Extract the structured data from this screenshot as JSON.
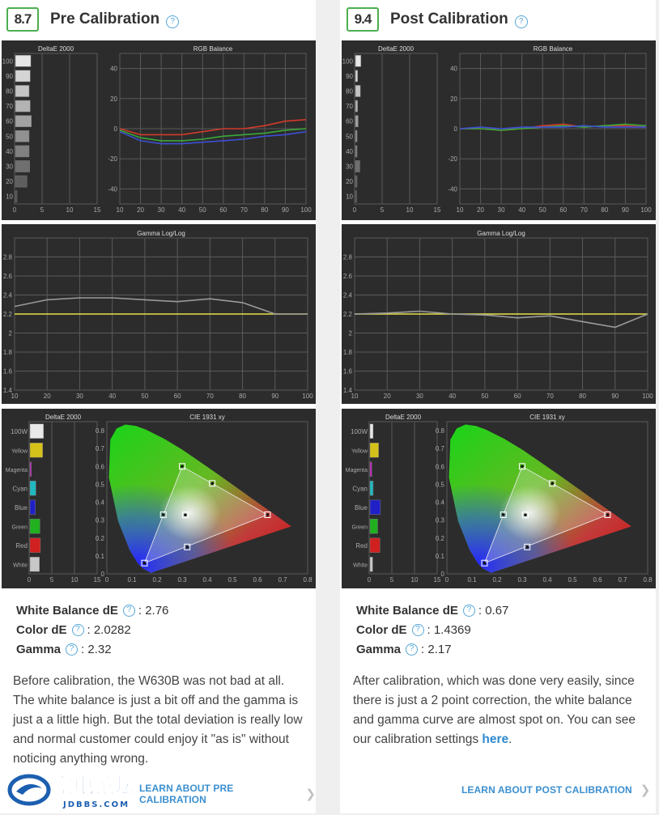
{
  "panels": {
    "pre": {
      "score": "8.7",
      "title": "Pre Calibration",
      "stats": [
        {
          "label": "White Balance dE",
          "value": ": 2.76"
        },
        {
          "label": "Color dE",
          "value": ": 2.0282"
        },
        {
          "label": "Gamma",
          "value": ": 2.32"
        }
      ],
      "description": "Before calibration, the W630B was not bad at all. The white balance is just a bit off and the gamma is just a a little high. But the total deviation is really low and normal customer could enjoy it \"as is\" without noticing anything wrong.",
      "learn_more": "LEARN ABOUT PRE CALIBRATION"
    },
    "post": {
      "score": "9.4",
      "title": "Post Calibration",
      "stats": [
        {
          "label": "White Balance dE",
          "value": ": 0.67"
        },
        {
          "label": "Color dE",
          "value": ": 1.4369"
        },
        {
          "label": "Gamma",
          "value": ": 2.17"
        }
      ],
      "description": "After calibration, which was done very easily, since there is just a 2 point correction, the white balance and gamma curve are almost spot on. You can see our calibration settings ",
      "description_link": "here",
      "description_end": ".",
      "learn_more": "LEARN ABOUT POST CALIBRATION"
    }
  },
  "watermark": {
    "text": "家电论坛",
    "subtext": "JDBBS.COM"
  },
  "chart_data": [
    {
      "panel": "pre",
      "type": "bar",
      "title": "DeltaE 2000",
      "categories": [
        "10",
        "20",
        "30",
        "40",
        "50",
        "60",
        "70",
        "80",
        "90",
        "100"
      ],
      "values": [
        0.3,
        2.1,
        2.6,
        2.5,
        2.5,
        2.9,
        2.7,
        2.5,
        2.7,
        2.8
      ],
      "xticks": [
        "0",
        "5",
        "10",
        "15"
      ],
      "xlim": [
        0,
        15
      ],
      "orientation": "horizontal"
    },
    {
      "panel": "pre",
      "type": "line",
      "title": "RGB Balance",
      "x": [
        10,
        20,
        30,
        40,
        50,
        60,
        70,
        80,
        90,
        100
      ],
      "xticks": [
        "10",
        "20",
        "30",
        "40",
        "50",
        "60",
        "70",
        "80",
        "90",
        "100"
      ],
      "yticks": [
        "40",
        "20",
        "0",
        "-20",
        "-40"
      ],
      "ylim": [
        -50,
        50
      ],
      "series": [
        {
          "color": "#d23a2a",
          "values": [
            0,
            -4,
            -4,
            -4,
            -2,
            0,
            0,
            2,
            5,
            6
          ]
        },
        {
          "color": "#3aa83a",
          "values": [
            -1,
            -6,
            -8,
            -8,
            -7,
            -5,
            -4,
            -3,
            -1,
            0
          ]
        },
        {
          "color": "#3d4fd6",
          "values": [
            -2,
            -8,
            -10,
            -10,
            -9,
            -8,
            -7,
            -5,
            -4,
            -2
          ]
        }
      ]
    },
    {
      "panel": "pre",
      "type": "line",
      "title": "Gamma Log/Log",
      "x": [
        10,
        20,
        30,
        40,
        50,
        60,
        70,
        80,
        90,
        100
      ],
      "xticks": [
        "10",
        "20",
        "30",
        "40",
        "50",
        "60",
        "70",
        "80",
        "90",
        "100"
      ],
      "yticks": [
        "2.8",
        "2.6",
        "2.4",
        "2.2",
        "2",
        "1.8",
        "1.6",
        "1.4"
      ],
      "ylim": [
        1.4,
        3.0
      ],
      "target": 2.2,
      "series": [
        {
          "color": "#9a9a9a",
          "values": [
            2.28,
            2.35,
            2.37,
            2.37,
            2.35,
            2.33,
            2.36,
            2.32,
            2.2,
            2.2
          ]
        }
      ]
    },
    {
      "panel": "pre",
      "type": "bar",
      "title": "DeltaE 2000",
      "categories": [
        "100W",
        "Yellow",
        "Magenta",
        "Cyan",
        "Blue",
        "Green",
        "Red",
        "White"
      ],
      "values": [
        3.0,
        2.8,
        0.3,
        1.3,
        1.2,
        2.2,
        2.3,
        2.1
      ],
      "colors": [
        "#e8e8e8",
        "#d4c21a",
        "#c020c0",
        "#20b8c0",
        "#2020c8",
        "#20b020",
        "#d02020",
        "#c8c8c8"
      ],
      "xticks": [
        "0",
        "5",
        "10",
        "15"
      ],
      "xlim": [
        0,
        15
      ],
      "orientation": "horizontal"
    },
    {
      "panel": "pre",
      "type": "scatter",
      "title": "CIE 1931 xy",
      "xticks": [
        "0",
        "0.1",
        "0.2",
        "0.3",
        "0.4",
        "0.5",
        "0.6",
        "0.7",
        "0.8"
      ],
      "yticks": [
        "0.8",
        "0.7",
        "0.6",
        "0.5",
        "0.4",
        "0.3",
        "0.2",
        "0.1",
        "0"
      ],
      "xlim": [
        0,
        0.8
      ],
      "ylim": [
        0,
        0.85
      ],
      "gamut_points": [
        {
          "x": 0.64,
          "y": 0.33
        },
        {
          "x": 0.3,
          "y": 0.6
        },
        {
          "x": 0.15,
          "y": 0.06
        },
        {
          "x": 0.225,
          "y": 0.33
        },
        {
          "x": 0.32,
          "y": 0.15
        },
        {
          "x": 0.42,
          "y": 0.505
        },
        {
          "x": 0.3127,
          "y": 0.329
        }
      ]
    },
    {
      "panel": "post",
      "type": "bar",
      "title": "DeltaE 2000",
      "categories": [
        "10",
        "20",
        "30",
        "40",
        "50",
        "60",
        "70",
        "80",
        "90",
        "100"
      ],
      "values": [
        0.2,
        0.3,
        0.8,
        0.3,
        0.3,
        0.5,
        0.4,
        0.9,
        0.4,
        1.0
      ],
      "xticks": [
        "0",
        "5",
        "10",
        "15"
      ],
      "xlim": [
        0,
        15
      ],
      "orientation": "horizontal"
    },
    {
      "panel": "post",
      "type": "line",
      "title": "RGB Balance",
      "x": [
        10,
        20,
        30,
        40,
        50,
        60,
        70,
        80,
        90,
        100
      ],
      "xticks": [
        "10",
        "20",
        "30",
        "40",
        "50",
        "60",
        "70",
        "80",
        "90",
        "100"
      ],
      "yticks": [
        "40",
        "20",
        "0",
        "-20",
        "-40"
      ],
      "ylim": [
        -50,
        50
      ],
      "series": [
        {
          "color": "#d23a2a",
          "values": [
            0,
            0,
            -1,
            0,
            2,
            3,
            1,
            2,
            2,
            1
          ]
        },
        {
          "color": "#3aa83a",
          "values": [
            0,
            0,
            -1,
            0,
            1,
            2,
            1,
            2,
            3,
            2
          ]
        },
        {
          "color": "#3d4fd6",
          "values": [
            0,
            1,
            0,
            1,
            1,
            1,
            2,
            1,
            1,
            1
          ]
        }
      ]
    },
    {
      "panel": "post",
      "type": "line",
      "title": "Gamma Log/Log",
      "x": [
        10,
        20,
        30,
        40,
        50,
        60,
        70,
        80,
        90,
        100
      ],
      "xticks": [
        "10",
        "20",
        "30",
        "40",
        "50",
        "60",
        "70",
        "80",
        "90",
        "100"
      ],
      "yticks": [
        "2.8",
        "2.6",
        "2.4",
        "2.2",
        "2",
        "1.8",
        "1.6",
        "1.4"
      ],
      "ylim": [
        1.4,
        3.0
      ],
      "target": 2.2,
      "series": [
        {
          "color": "#9a9a9a",
          "values": [
            2.2,
            2.21,
            2.23,
            2.2,
            2.19,
            2.16,
            2.18,
            2.12,
            2.06,
            2.2
          ]
        }
      ]
    },
    {
      "panel": "post",
      "type": "bar",
      "title": "DeltaE 2000",
      "categories": [
        "100W",
        "Yellow",
        "Magenta",
        "Cyan",
        "Blue",
        "Green",
        "Red",
        "White"
      ],
      "values": [
        0.7,
        1.9,
        0.4,
        0.7,
        2.3,
        1.7,
        2.2,
        0.6
      ],
      "colors": [
        "#e8e8e8",
        "#d4c21a",
        "#c020c0",
        "#20b8c0",
        "#2020c8",
        "#20b020",
        "#d02020",
        "#c8c8c8"
      ],
      "xticks": [
        "0",
        "5",
        "10",
        "15"
      ],
      "xlim": [
        0,
        15
      ],
      "orientation": "horizontal"
    },
    {
      "panel": "post",
      "type": "scatter",
      "title": "CIE 1931 xy",
      "xticks": [
        "0",
        "0.1",
        "0.2",
        "0.3",
        "0.4",
        "0.5",
        "0.6",
        "0.7",
        "0.8"
      ],
      "yticks": [
        "0.8",
        "0.7",
        "0.6",
        "0.5",
        "0.4",
        "0.3",
        "0.2",
        "0.1",
        "0"
      ],
      "xlim": [
        0,
        0.8
      ],
      "ylim": [
        0,
        0.85
      ],
      "gamut_points": [
        {
          "x": 0.64,
          "y": 0.33
        },
        {
          "x": 0.3,
          "y": 0.6
        },
        {
          "x": 0.15,
          "y": 0.06
        },
        {
          "x": 0.225,
          "y": 0.33
        },
        {
          "x": 0.32,
          "y": 0.15
        },
        {
          "x": 0.42,
          "y": 0.505
        },
        {
          "x": 0.3127,
          "y": 0.329
        }
      ]
    }
  ]
}
